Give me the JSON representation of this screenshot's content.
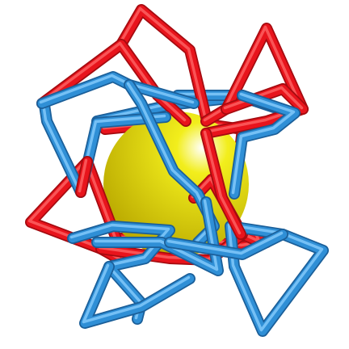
{
  "figure": {
    "subject": "interlocked-cage-around-sphere",
    "colors": {
      "background": "#ffffff",
      "red_rod": "#e8141c",
      "red_rod_dark": "#a50b10",
      "red_rod_light": "#ff6a6a",
      "blue_rod": "#2f8fd6",
      "blue_rod_dark": "#1b5f99",
      "blue_rod_light": "#8ed0ff",
      "sphere_highlight": "#ffffff",
      "sphere_mid": "#f2ee1c",
      "sphere_shadow": "#b9a800"
    },
    "components": [
      "yellow-sphere",
      "red-rod-cage",
      "blue-rod-cage"
    ]
  }
}
